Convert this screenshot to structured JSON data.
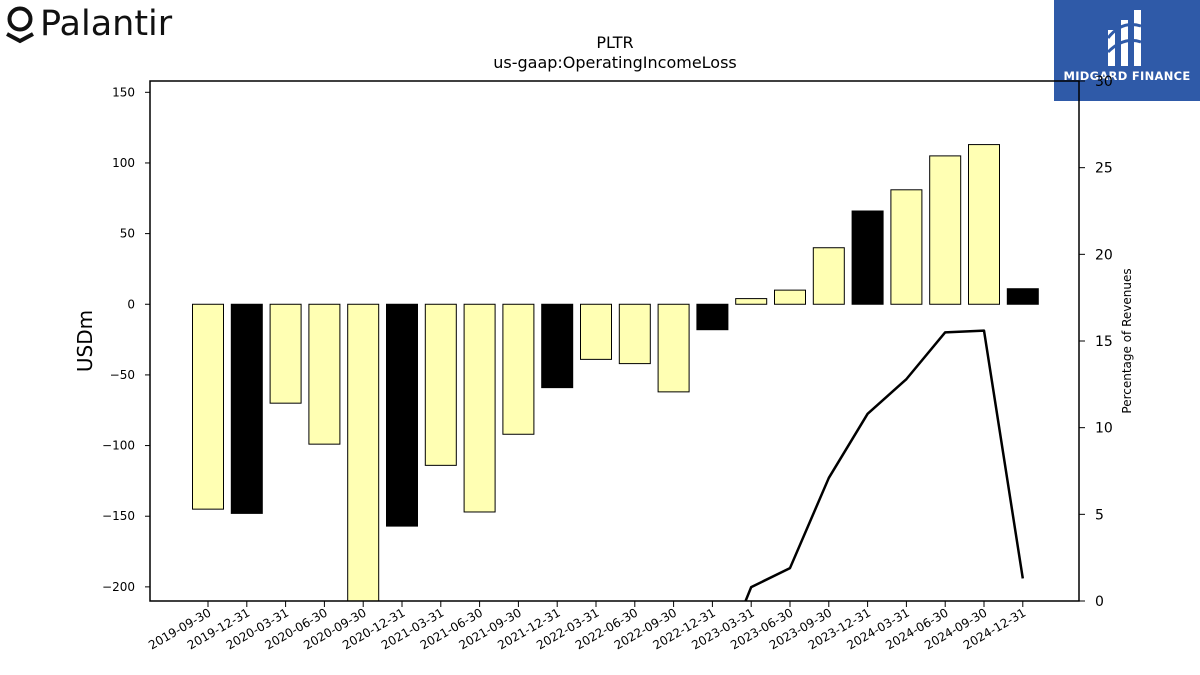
{
  "branding": {
    "company_name": "Palantir",
    "publisher_name": "MIDGARD FINANCE"
  },
  "colors": {
    "bar_fill": "#ffffb3",
    "bar_highlight": "#000000",
    "line": "#000000",
    "badge_bg": "#2f5aa8"
  },
  "chart_data": {
    "type": "bar",
    "title": "PLTR",
    "subtitle": "us-gaap:OperatingIncomeLoss",
    "ylabel": "USDm",
    "y2label": "Percentage of Revenues",
    "ylim": [
      -210,
      158
    ],
    "y2lim": [
      0,
      30
    ],
    "yticks": [
      150,
      100,
      50,
      0,
      -50,
      -100,
      -150,
      -200
    ],
    "y2ticks": [
      0,
      5,
      10,
      15,
      20,
      25,
      30
    ],
    "grid": false,
    "categories": [
      "2019-09-30",
      "2019-12-31",
      "2020-03-31",
      "2020-06-30",
      "2020-09-30",
      "2020-12-31",
      "2021-03-31",
      "2021-06-30",
      "2021-09-30",
      "2021-12-31",
      "2022-03-31",
      "2022-06-30",
      "2022-09-30",
      "2022-12-31",
      "2023-03-31",
      "2023-06-30",
      "2023-09-30",
      "2023-12-31",
      "2024-03-31",
      "2024-06-30",
      "2024-09-30",
      "2024-12-31"
    ],
    "series": [
      {
        "values": [
          -145,
          -148,
          -70,
          -99,
          -210,
          -157,
          -114,
          -147,
          -92,
          -59,
          -39,
          -42,
          -62,
          -18,
          4,
          10,
          40,
          66,
          81,
          105,
          113,
          11
        ],
        "highlight": [
          false,
          true,
          false,
          false,
          false,
          true,
          false,
          false,
          false,
          true,
          false,
          false,
          false,
          true,
          false,
          false,
          false,
          true,
          false,
          false,
          false,
          true
        ]
      },
      {
        "type": "line",
        "axis": "right",
        "values": [
          null,
          null,
          null,
          null,
          null,
          null,
          null,
          null,
          null,
          null,
          null,
          null,
          null,
          null,
          0.8,
          1.9,
          7.1,
          10.8,
          12.8,
          15.5,
          15.6,
          1.3
        ],
        "note_start": [
          13.4,
          -2.5
        ]
      }
    ]
  }
}
